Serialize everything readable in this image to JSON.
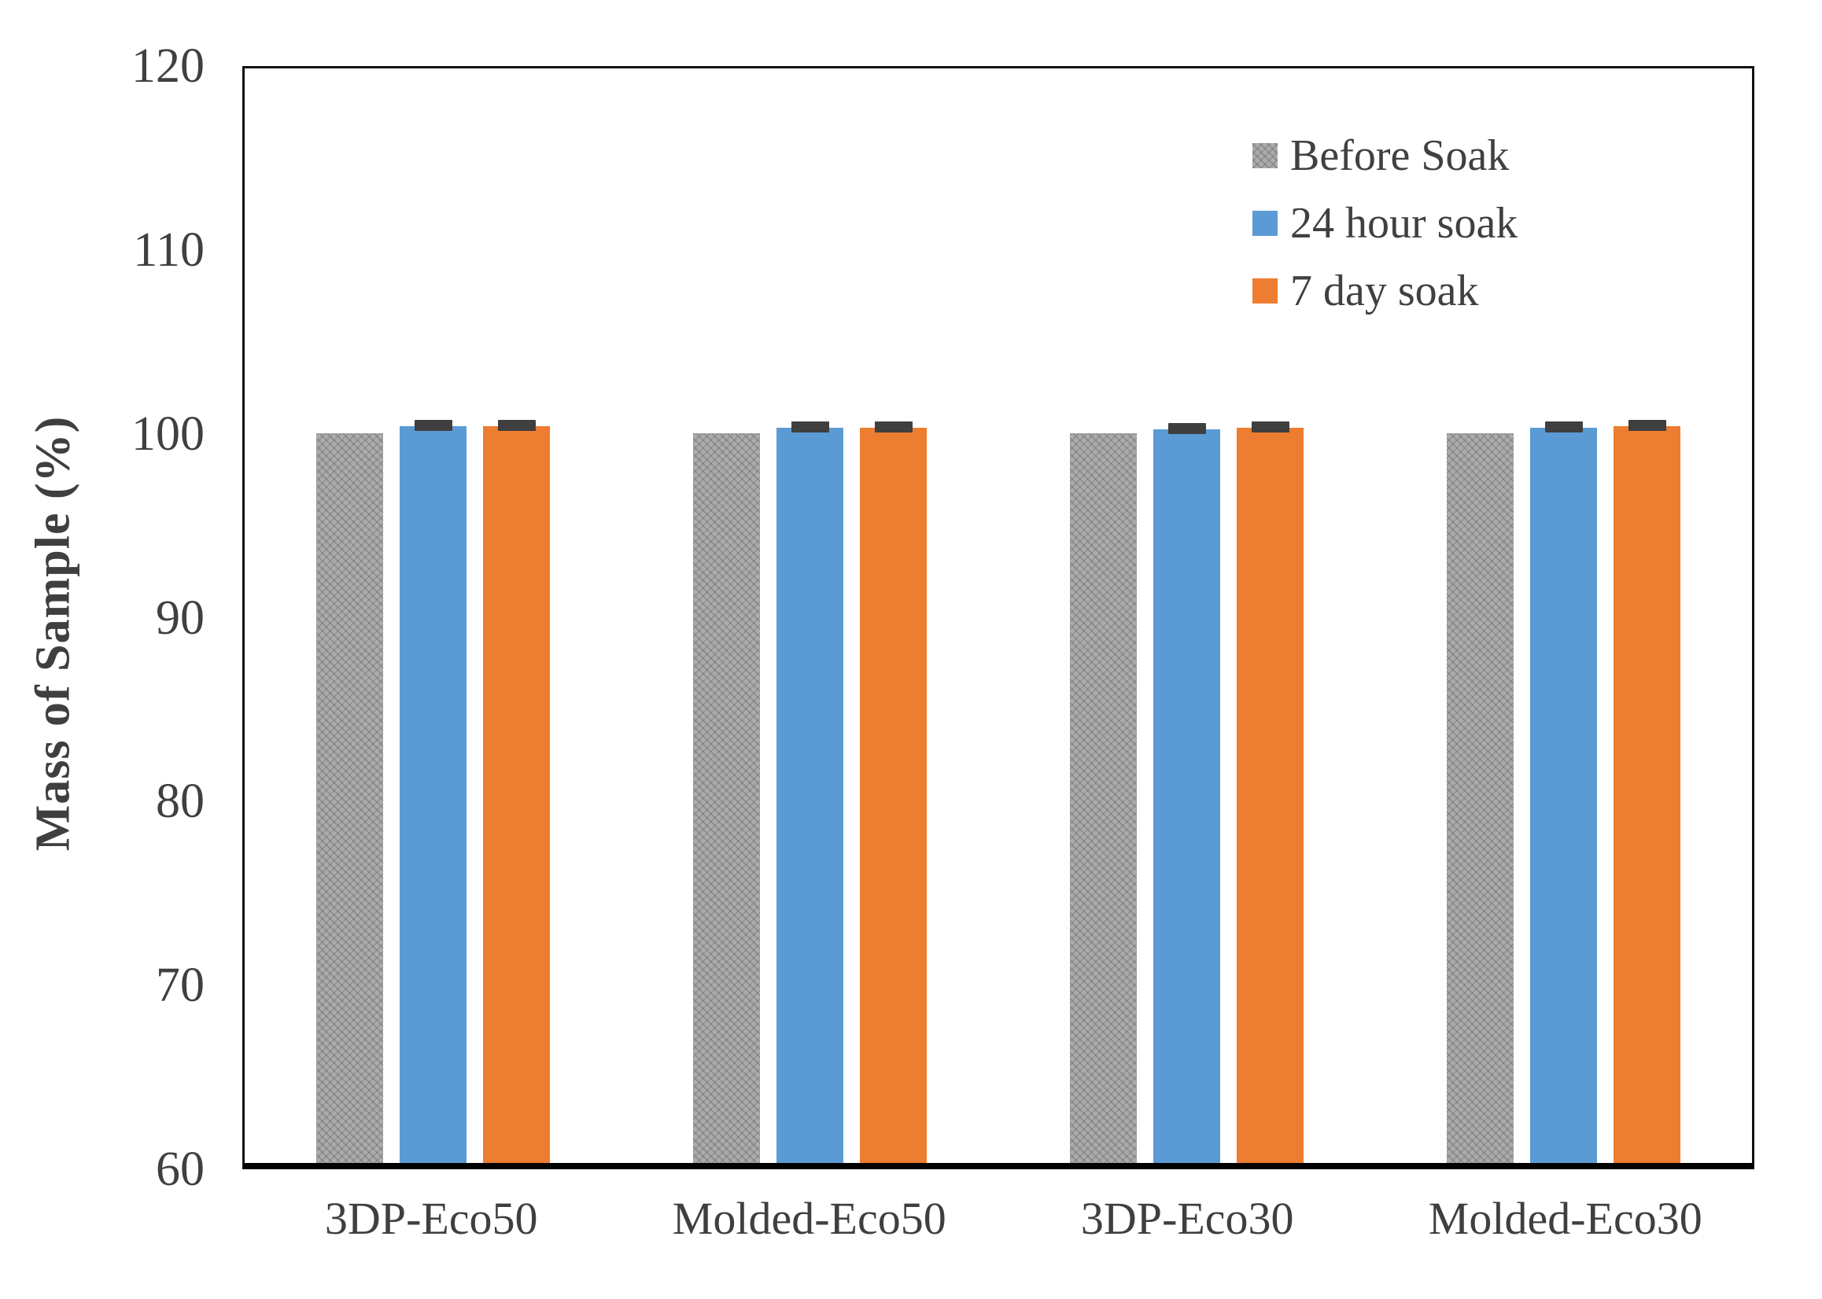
{
  "chart_data": {
    "type": "bar",
    "title": "",
    "xlabel": "",
    "ylabel": "Mass of Sample (%)",
    "categories": [
      "3DP-Eco50",
      "Molded-Eco50",
      "3DP-Eco30",
      "Molded-Eco30"
    ],
    "series": [
      {
        "name": "Before Soak",
        "color": "#acacac",
        "pattern": "hatch",
        "values": [
          100,
          100,
          100,
          100
        ],
        "error": [
          0,
          0,
          0,
          0
        ]
      },
      {
        "name": "24 hour soak",
        "color": "#5b9bd5",
        "pattern": "solid",
        "values": [
          100.4,
          100.3,
          100.2,
          100.3
        ],
        "error": [
          0.2,
          0.2,
          0.15,
          0.2
        ]
      },
      {
        "name": "7 day soak",
        "color": "#ed7d31",
        "pattern": "solid",
        "values": [
          100.4,
          100.3,
          100.3,
          100.4
        ],
        "error": [
          0.2,
          0.15,
          0.2,
          0.2
        ]
      }
    ],
    "ylim": [
      60,
      120
    ],
    "yticks": [
      120,
      110,
      100,
      90,
      80,
      70,
      60
    ],
    "grid": false,
    "legend_position": "top-right",
    "error_bar_color": "#3f3f3f",
    "axis_color": "#000000",
    "tick_label_color": "#404040"
  }
}
